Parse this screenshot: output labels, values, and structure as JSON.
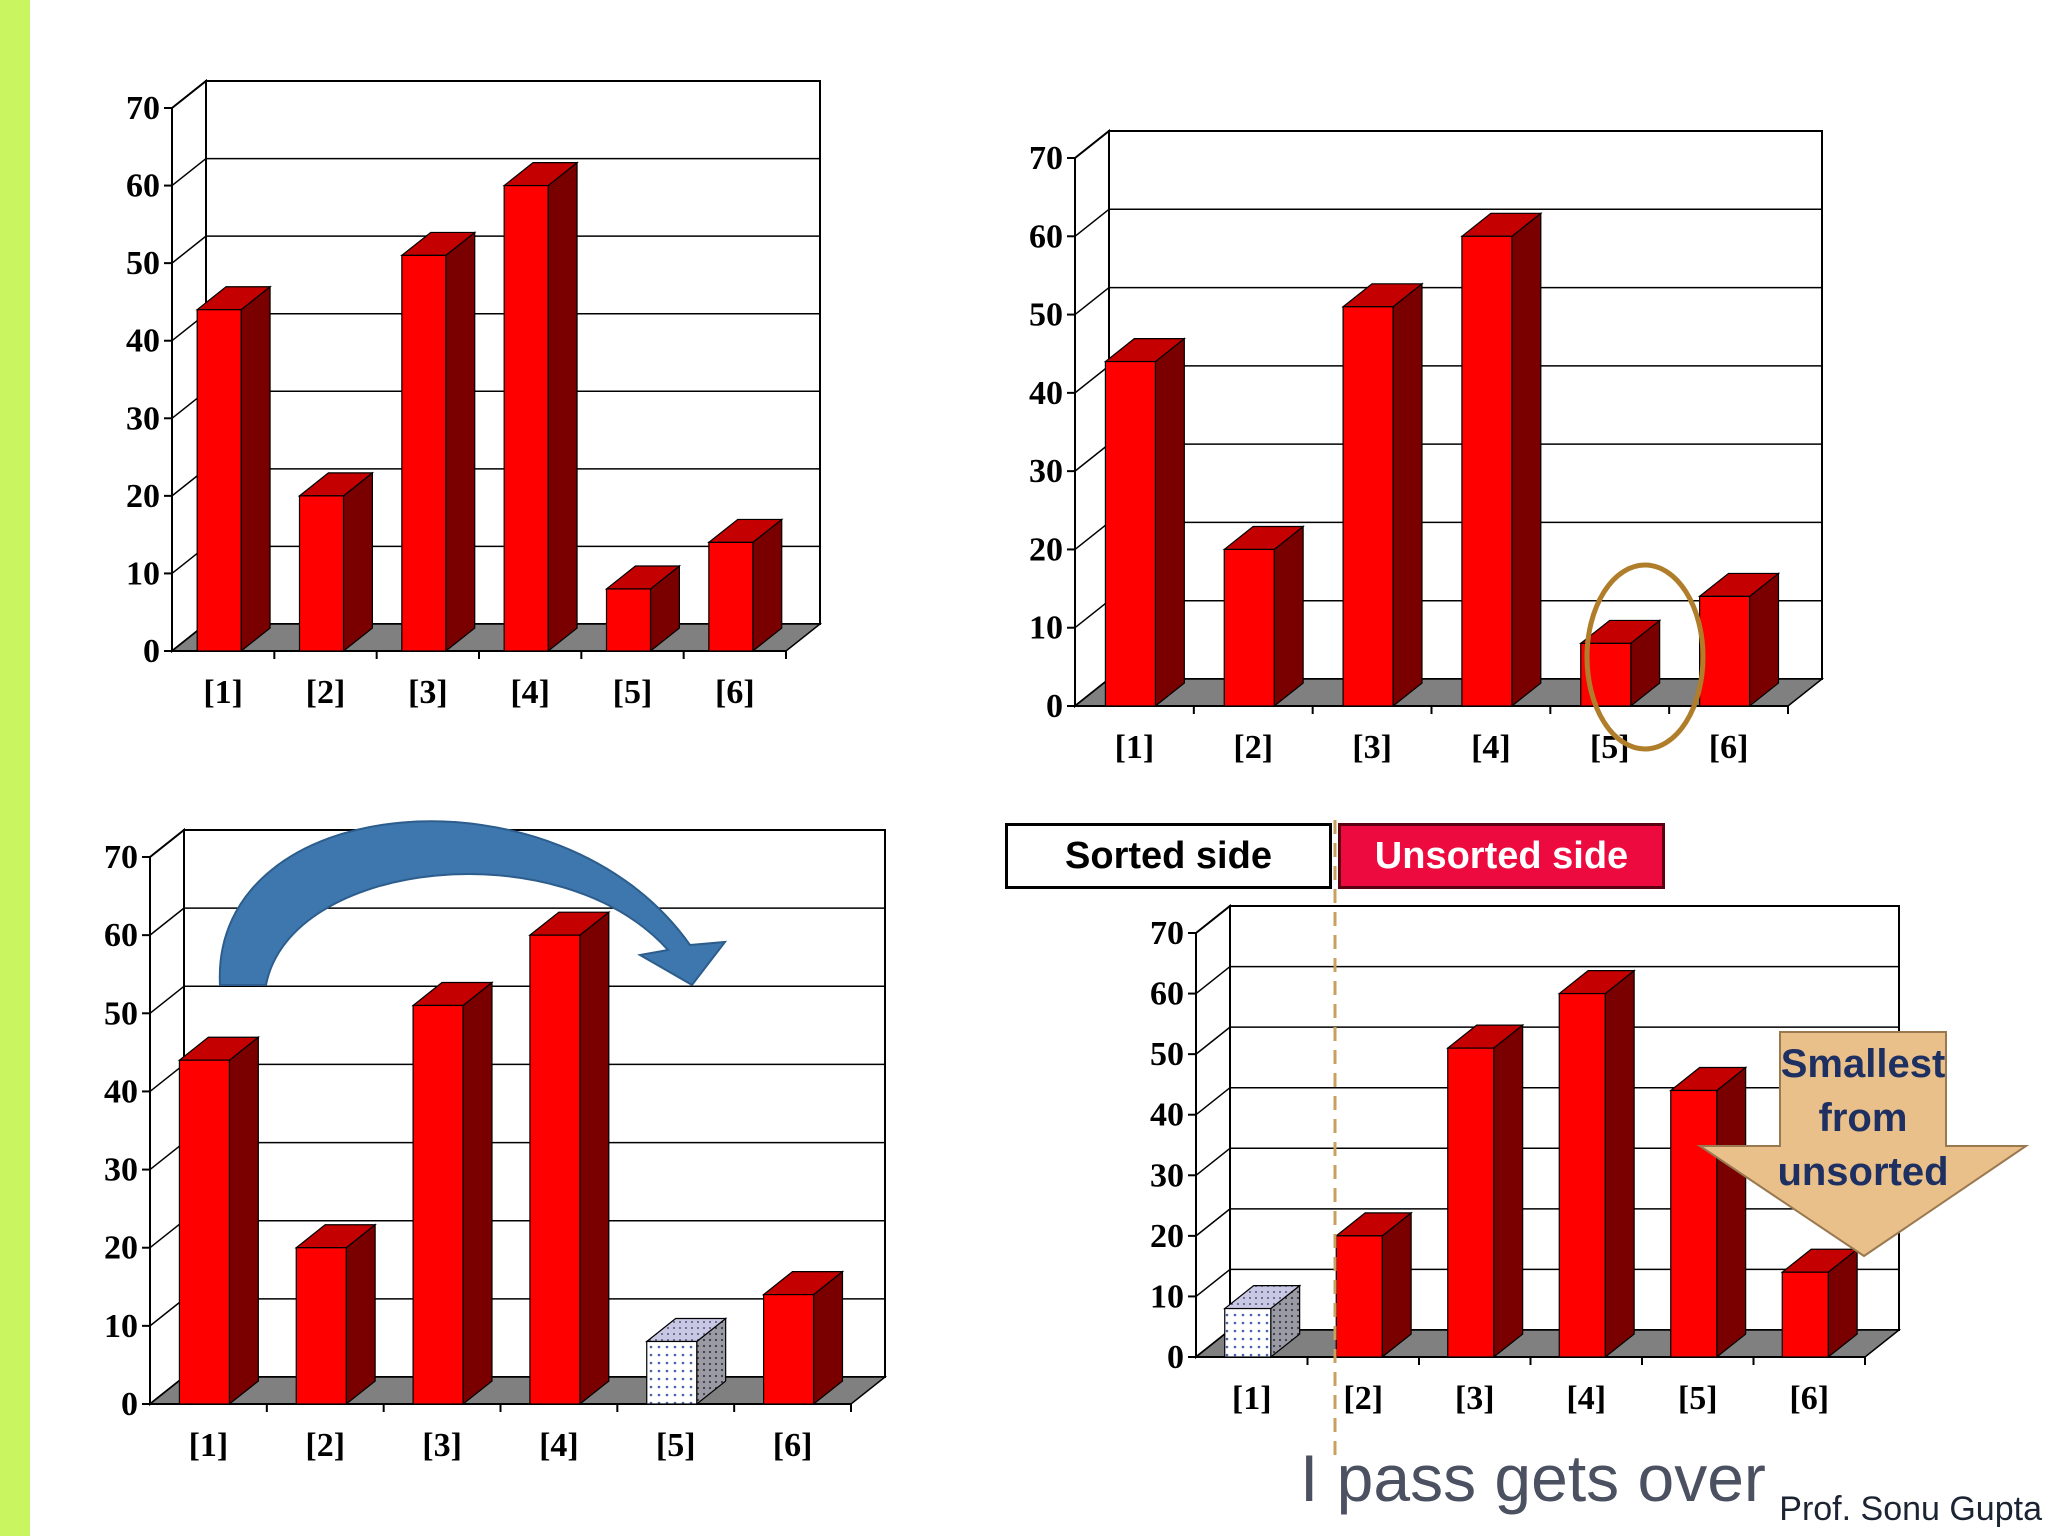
{
  "colors": {
    "bar_front": "#ff0000",
    "bar_side": "#7a0000",
    "bar_top": "#c40000",
    "floor": "#808080",
    "side_bar": "#c9f560",
    "arrow_blue": "#3d77ad",
    "circle": "#b07e2a",
    "dashed_line": "#c9a060",
    "down_arrow": "#e9c08a",
    "down_arrow_text": "#1e2f62",
    "unsorted_bg": "#ed0a3f"
  },
  "chart_data": [
    {
      "type": "bar",
      "categories": [
        "[1]",
        "[2]",
        "[3]",
        "[4]",
        "[5]",
        "[6]"
      ],
      "values": [
        44,
        20,
        51,
        60,
        8,
        14
      ],
      "y_ticks": [
        "0",
        "10",
        "20",
        "30",
        "40",
        "50",
        "60",
        "70"
      ],
      "ylim": [
        0,
        70
      ],
      "grid": true,
      "title": "",
      "xlabel": "",
      "ylabel": ""
    },
    {
      "type": "bar",
      "categories": [
        "[1]",
        "[2]",
        "[3]",
        "[4]",
        "[5]",
        "[6]"
      ],
      "values": [
        44,
        20,
        51,
        60,
        8,
        14
      ],
      "y_ticks": [
        "0",
        "10",
        "20",
        "30",
        "40",
        "50",
        "60",
        "70"
      ],
      "ylim": [
        0,
        70
      ],
      "grid": true,
      "highlighted_category": "[5]",
      "title": "",
      "xlabel": "",
      "ylabel": ""
    },
    {
      "type": "bar",
      "categories": [
        "[1]",
        "[2]",
        "[3]",
        "[4]",
        "[5]",
        "[6]"
      ],
      "values": [
        44,
        20,
        51,
        60,
        8,
        14
      ],
      "y_ticks": [
        "0",
        "10",
        "20",
        "30",
        "40",
        "50",
        "60",
        "70"
      ],
      "ylim": [
        0,
        70
      ],
      "grid": true,
      "dotted_category": "[5]",
      "title": "",
      "xlabel": "",
      "ylabel": ""
    },
    {
      "type": "bar",
      "categories": [
        "[1]",
        "[2]",
        "[3]",
        "[4]",
        "[5]",
        "[6]"
      ],
      "values": [
        8,
        20,
        51,
        60,
        44,
        14
      ],
      "y_ticks": [
        "0",
        "10",
        "20",
        "30",
        "40",
        "50",
        "60",
        "70"
      ],
      "ylim": [
        0,
        70
      ],
      "grid": true,
      "dotted_category": "[1]",
      "title": "",
      "xlabel": "",
      "ylabel": ""
    }
  ],
  "legend": {
    "sorted_label": "Sorted side",
    "unsorted_label": "Unsorted side"
  },
  "callout": {
    "lines": [
      "Smallest",
      "from",
      "unsorted"
    ]
  },
  "caption": "I pass gets over",
  "author": "Prof. Sonu Gupta"
}
